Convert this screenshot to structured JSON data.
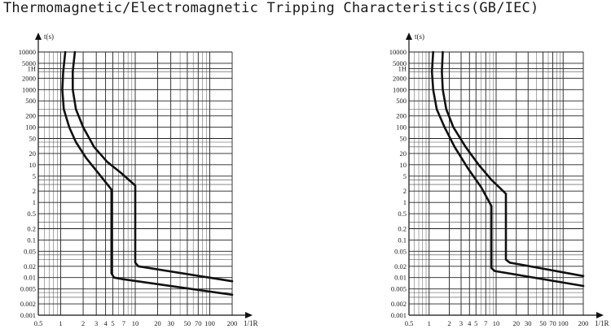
{
  "title": "Thermomagnetic/Electromagnetic Tripping Characteristics(GB/IEC)",
  "chart_data": [
    {
      "type": "line",
      "xscale": "log",
      "yscale": "log",
      "xlim": [
        0.5,
        200
      ],
      "ylim": [
        0.001,
        10000
      ],
      "xlabel": "1/1R",
      "ylabel": "t(s)",
      "xticks": [
        {
          "v": 0.5,
          "label": "0.5"
        },
        {
          "v": 1,
          "label": "1"
        },
        {
          "v": 2,
          "label": "2"
        },
        {
          "v": 3,
          "label": "3"
        },
        {
          "v": 4,
          "label": "4"
        },
        {
          "v": 5,
          "label": "5"
        },
        {
          "v": 7,
          "label": "7"
        },
        {
          "v": 10,
          "label": "10"
        },
        {
          "v": 20,
          "label": "20"
        },
        {
          "v": 30,
          "label": "30"
        },
        {
          "v": 50,
          "label": "50"
        },
        {
          "v": 70,
          "label": "70"
        },
        {
          "v": 100,
          "label": "100"
        },
        {
          "v": 200,
          "label": "200"
        }
      ],
      "yticks": [
        {
          "v": 10000,
          "label": "10000"
        },
        {
          "v": 5000,
          "label": "5000"
        },
        {
          "v": 3600,
          "label": "1H"
        },
        {
          "v": 2000,
          "label": "2000"
        },
        {
          "v": 1000,
          "label": "1000"
        },
        {
          "v": 500,
          "label": "500"
        },
        {
          "v": 200,
          "label": "200"
        },
        {
          "v": 100,
          "label": "100"
        },
        {
          "v": 50,
          "label": "50"
        },
        {
          "v": 20,
          "label": "20"
        },
        {
          "v": 10,
          "label": "10"
        },
        {
          "v": 5,
          "label": "5"
        },
        {
          "v": 2,
          "label": "2"
        },
        {
          "v": 1,
          "label": "1"
        },
        {
          "v": 0.5,
          "label": "0.5"
        },
        {
          "v": 0.2,
          "label": "0.2"
        },
        {
          "v": 0.1,
          "label": "0.1"
        },
        {
          "v": 0.05,
          "label": "0.05"
        },
        {
          "v": 0.02,
          "label": "0.02"
        },
        {
          "v": 0.01,
          "label": "0.01"
        },
        {
          "v": 0.005,
          "label": "0.005"
        },
        {
          "v": 0.002,
          "label": "0.002"
        },
        {
          "v": 0.001,
          "label": "0.001"
        }
      ],
      "series": [
        {
          "points": [
            [
              1.15,
              10000
            ],
            [
              1.08,
              3000
            ],
            [
              1.05,
              1000
            ],
            [
              1.1,
              300
            ],
            [
              1.3,
              100
            ],
            [
              1.6,
              40
            ],
            [
              2.2,
              15
            ],
            [
              3.2,
              6
            ],
            [
              4.8,
              2.2
            ],
            [
              4.8,
              0.013
            ],
            [
              5.2,
              0.01
            ],
            [
              7,
              0.009
            ],
            [
              200,
              0.0035
            ]
          ]
        },
        {
          "points": [
            [
              1.55,
              10000
            ],
            [
              1.45,
              3000
            ],
            [
              1.45,
              1000
            ],
            [
              1.6,
              300
            ],
            [
              2.0,
              100
            ],
            [
              2.8,
              30
            ],
            [
              4.2,
              12
            ],
            [
              6.5,
              6
            ],
            [
              10,
              2.8
            ],
            [
              10,
              0.025
            ],
            [
              11,
              0.02
            ],
            [
              200,
              0.008
            ]
          ]
        }
      ]
    },
    {
      "type": "line",
      "xscale": "log",
      "yscale": "log",
      "xlim": [
        0.5,
        200
      ],
      "ylim": [
        0.001,
        10000
      ],
      "xlabel": "1/1R",
      "ylabel": "t(s)",
      "xticks": [
        {
          "v": 0.5,
          "label": "0.5"
        },
        {
          "v": 1,
          "label": "1"
        },
        {
          "v": 2,
          "label": "2"
        },
        {
          "v": 3,
          "label": "3"
        },
        {
          "v": 4,
          "label": "4"
        },
        {
          "v": 5,
          "label": "5"
        },
        {
          "v": 7,
          "label": "7"
        },
        {
          "v": 10,
          "label": "10"
        },
        {
          "v": 20,
          "label": "20"
        },
        {
          "v": 30,
          "label": "30"
        },
        {
          "v": 50,
          "label": "50"
        },
        {
          "v": 70,
          "label": "70"
        },
        {
          "v": 100,
          "label": "100"
        },
        {
          "v": 200,
          "label": "200"
        }
      ],
      "yticks": [
        {
          "v": 10000,
          "label": "10000"
        },
        {
          "v": 5000,
          "label": "5000"
        },
        {
          "v": 3600,
          "label": "1H"
        },
        {
          "v": 2000,
          "label": "2000"
        },
        {
          "v": 1000,
          "label": "1000"
        },
        {
          "v": 500,
          "label": "500"
        },
        {
          "v": 200,
          "label": "200"
        },
        {
          "v": 100,
          "label": "100"
        },
        {
          "v": 50,
          "label": "50"
        },
        {
          "v": 20,
          "label": "20"
        },
        {
          "v": 10,
          "label": "10"
        },
        {
          "v": 5,
          "label": "5"
        },
        {
          "v": 2,
          "label": "2"
        },
        {
          "v": 1,
          "label": "1"
        },
        {
          "v": 0.5,
          "label": "0.5"
        },
        {
          "v": 0.2,
          "label": "0.2"
        },
        {
          "v": 0.1,
          "label": "0.1"
        },
        {
          "v": 0.05,
          "label": "0.05"
        },
        {
          "v": 0.02,
          "label": "0.02"
        },
        {
          "v": 0.01,
          "label": "0.01"
        },
        {
          "v": 0.005,
          "label": "0.005"
        },
        {
          "v": 0.002,
          "label": "0.002"
        },
        {
          "v": 0.001,
          "label": "0.001"
        }
      ],
      "series": [
        {
          "points": [
            [
              1.15,
              10000
            ],
            [
              1.1,
              3000
            ],
            [
              1.15,
              1000
            ],
            [
              1.3,
              300
            ],
            [
              1.7,
              100
            ],
            [
              2.4,
              30
            ],
            [
              3.8,
              8
            ],
            [
              6,
              2.5
            ],
            [
              8.5,
              0.8
            ],
            [
              8.5,
              0.018
            ],
            [
              9.5,
              0.015
            ],
            [
              200,
              0.006
            ]
          ]
        },
        {
          "points": [
            [
              1.6,
              10000
            ],
            [
              1.55,
              3000
            ],
            [
              1.6,
              1000
            ],
            [
              1.8,
              300
            ],
            [
              2.3,
              100
            ],
            [
              3.5,
              30
            ],
            [
              5.5,
              10
            ],
            [
              8.5,
              4
            ],
            [
              14,
              1.7
            ],
            [
              14,
              0.03
            ],
            [
              16,
              0.025
            ],
            [
              200,
              0.011
            ]
          ]
        }
      ]
    }
  ]
}
